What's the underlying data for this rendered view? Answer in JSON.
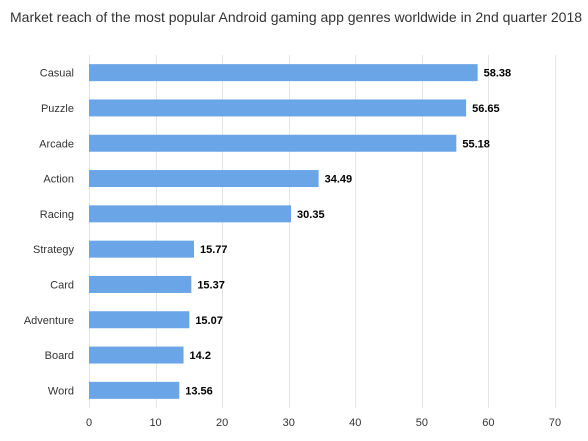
{
  "chart_data": {
    "type": "bar",
    "orientation": "horizontal",
    "title": "Market reach of the most popular Android gaming app genres worldwide in 2nd quarter 2018",
    "categories": [
      "Casual",
      "Puzzle",
      "Arcade",
      "Action",
      "Racing",
      "Strategy",
      "Card",
      "Adventure",
      "Board",
      "Word"
    ],
    "values": [
      58.38,
      56.65,
      55.18,
      34.49,
      30.35,
      15.77,
      15.37,
      15.07,
      14.2,
      13.56
    ],
    "value_labels": [
      "58.38",
      "56.65",
      "55.18",
      "34.49",
      "30.35",
      "15.77",
      "15.37",
      "15.07",
      "14.2",
      "13.56"
    ],
    "xlim": [
      0,
      70
    ],
    "xticks": [
      0,
      10,
      20,
      30,
      40,
      50,
      60,
      70
    ],
    "xlabel": "",
    "ylabel": "",
    "grid": true,
    "legend": "none",
    "bar_color": "#6aa5e7",
    "grid_color": "#e6e6e6"
  }
}
